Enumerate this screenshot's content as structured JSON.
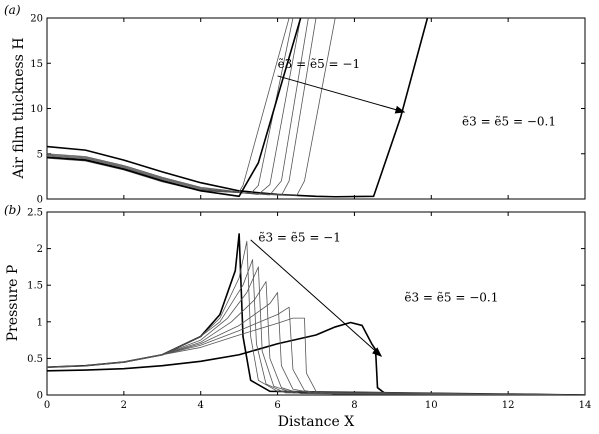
{
  "chart_data": [
    {
      "type": "line",
      "panel_label": "(a)",
      "xlabel": "",
      "ylabel": "Air film thickness H",
      "xlim": [
        0,
        14
      ],
      "ylim": [
        0,
        20
      ],
      "xticks": [
        "0",
        "2",
        "4",
        "6",
        "8",
        "10",
        "12",
        "14"
      ],
      "yticks": [
        "0",
        "5",
        "10",
        "15",
        "20"
      ],
      "x_tick_labels_shown": false,
      "annotations": [
        {
          "text": "ẽ3 = ẽ5 = −1",
          "x": 6.0,
          "y": 14.5
        },
        {
          "text": "ẽ3 = ẽ5 = −0.1",
          "x": 10.8,
          "y": 8.1
        }
      ],
      "arrow": {
        "from": [
          6.0,
          13.6
        ],
        "to": [
          9.3,
          9.6
        ]
      },
      "series": [
        {
          "values": [
            [
              0,
              5.8
            ],
            [
              1,
              5.4
            ],
            [
              2,
              4.3
            ],
            [
              3,
              3.0
            ],
            [
              4,
              1.8
            ],
            [
              5,
              0.9
            ],
            [
              6,
              0.5
            ],
            [
              7,
              0.3
            ],
            [
              7.5,
              0.25
            ],
            [
              8.5,
              0.3
            ],
            [
              9.2,
              9.0
            ],
            [
              9.9,
              20
            ]
          ],
          "bold": true
        },
        {
          "values": [
            [
              0,
              5.0
            ],
            [
              1,
              4.7
            ],
            [
              2,
              3.7
            ],
            [
              3,
              2.4
            ],
            [
              4,
              1.3
            ],
            [
              5,
              0.8
            ],
            [
              5.1,
              1.5
            ],
            [
              6.3,
              20
            ]
          ],
          "bold": false
        },
        {
          "values": [
            [
              0,
              4.9
            ],
            [
              1,
              4.6
            ],
            [
              2,
              3.6
            ],
            [
              3,
              2.3
            ],
            [
              4,
              1.2
            ],
            [
              5.3,
              0.6
            ],
            [
              5.5,
              1.5
            ],
            [
              6.4,
              20
            ]
          ],
          "bold": false
        },
        {
          "values": [
            [
              0,
              4.8
            ],
            [
              1,
              4.5
            ],
            [
              2,
              3.5
            ],
            [
              3,
              2.2
            ],
            [
              4,
              1.1
            ],
            [
              5.5,
              0.5
            ],
            [
              5.8,
              1.6
            ],
            [
              6.6,
              20
            ]
          ],
          "bold": false
        },
        {
          "values": [
            [
              0,
              4.7
            ],
            [
              1,
              4.4
            ],
            [
              2,
              3.4
            ],
            [
              3,
              2.1
            ],
            [
              4,
              1.0
            ],
            [
              5.8,
              0.45
            ],
            [
              6.1,
              2.0
            ],
            [
              6.8,
              20
            ]
          ],
          "bold": false
        },
        {
          "values": [
            [
              0,
              4.6
            ],
            [
              1,
              4.3
            ],
            [
              2,
              3.3
            ],
            [
              3,
              2.0
            ],
            [
              4,
              1.0
            ],
            [
              6.1,
              0.4
            ],
            [
              6.3,
              2.0
            ],
            [
              7.0,
              20
            ]
          ],
          "bold": false
        },
        {
          "values": [
            [
              0,
              4.5
            ],
            [
              1,
              4.2
            ],
            [
              2,
              3.2
            ],
            [
              3,
              1.9
            ],
            [
              4,
              0.9
            ],
            [
              6.5,
              0.4
            ],
            [
              6.7,
              2.0
            ],
            [
              7.5,
              20
            ]
          ],
          "bold": false
        },
        {
          "values": [
            [
              0,
              4.6
            ],
            [
              1,
              4.3
            ],
            [
              2,
              3.3
            ],
            [
              3,
              2.0
            ],
            [
              4,
              0.9
            ],
            [
              5,
              0.3
            ],
            [
              5.5,
              4.0
            ],
            [
              6.6,
              20
            ]
          ],
          "bold": true
        }
      ]
    },
    {
      "type": "line",
      "panel_label": "(b)",
      "xlabel": "Distance X",
      "ylabel": "Pressure P",
      "xlim": [
        0,
        14
      ],
      "ylim": [
        0,
        2.5
      ],
      "xticks": [
        "0",
        "2",
        "4",
        "6",
        "8",
        "10",
        "12",
        "14"
      ],
      "yticks": [
        "0",
        "0.5",
        "1",
        "1.5",
        "2",
        "2.5"
      ],
      "x_tick_labels_shown": true,
      "annotations": [
        {
          "text": "ẽ3 = ẽ5 = −1",
          "x": 5.5,
          "y": 2.1
        },
        {
          "text": "ẽ3 = ẽ5 = −0.1",
          "x": 9.3,
          "y": 1.28
        }
      ],
      "arrow": {
        "from": [
          5.3,
          2.12
        ],
        "to": [
          8.7,
          0.53
        ]
      },
      "series": [
        {
          "values": [
            [
              0,
              0.33
            ],
            [
              1,
              0.34
            ],
            [
              2,
              0.36
            ],
            [
              3,
              0.4
            ],
            [
              4,
              0.46
            ],
            [
              5,
              0.55
            ],
            [
              6,
              0.7
            ],
            [
              7,
              0.82
            ],
            [
              7.5,
              0.93
            ],
            [
              7.9,
              0.99
            ],
            [
              8.2,
              0.95
            ],
            [
              8.45,
              0.7
            ],
            [
              8.55,
              0.62
            ],
            [
              8.6,
              0.1
            ],
            [
              8.8,
              0.02
            ],
            [
              14,
              0.0
            ]
          ],
          "bold": true
        },
        {
          "values": [
            [
              0,
              0.38
            ],
            [
              1,
              0.4
            ],
            [
              2,
              0.45
            ],
            [
              3,
              0.55
            ],
            [
              4,
              0.8
            ],
            [
              4.5,
              1.1
            ],
            [
              4.9,
              1.7
            ],
            [
              5.0,
              2.2
            ],
            [
              5.1,
              0.8
            ],
            [
              5.3,
              0.2
            ],
            [
              5.8,
              0.05
            ],
            [
              14,
              0.0
            ]
          ],
          "bold": true
        },
        {
          "values": [
            [
              0,
              0.38
            ],
            [
              1,
              0.4
            ],
            [
              2,
              0.45
            ],
            [
              3,
              0.55
            ],
            [
              4,
              0.8
            ],
            [
              4.5,
              1.05
            ],
            [
              5.0,
              1.6
            ],
            [
              5.2,
              2.1
            ],
            [
              5.3,
              0.8
            ],
            [
              5.5,
              0.2
            ],
            [
              6.0,
              0.05
            ],
            [
              14,
              0.0
            ]
          ],
          "bold": false
        },
        {
          "values": [
            [
              0,
              0.38
            ],
            [
              1,
              0.4
            ],
            [
              2,
              0.45
            ],
            [
              3,
              0.55
            ],
            [
              4,
              0.8
            ],
            [
              4.5,
              1.0
            ],
            [
              5.1,
              1.5
            ],
            [
              5.35,
              1.85
            ],
            [
              5.45,
              0.7
            ],
            [
              5.7,
              0.15
            ],
            [
              6.2,
              0.03
            ],
            [
              14,
              0.0
            ]
          ],
          "bold": false
        },
        {
          "values": [
            [
              0,
              0.38
            ],
            [
              1,
              0.4
            ],
            [
              2,
              0.45
            ],
            [
              3,
              0.55
            ],
            [
              4,
              0.75
            ],
            [
              4.7,
              1.05
            ],
            [
              5.2,
              1.4
            ],
            [
              5.5,
              1.75
            ],
            [
              5.6,
              0.6
            ],
            [
              5.9,
              0.12
            ],
            [
              6.4,
              0.03
            ],
            [
              14,
              0.0
            ]
          ],
          "bold": false
        },
        {
          "values": [
            [
              0,
              0.38
            ],
            [
              1,
              0.4
            ],
            [
              2,
              0.45
            ],
            [
              3,
              0.55
            ],
            [
              4,
              0.72
            ],
            [
              4.8,
              1.0
            ],
            [
              5.4,
              1.3
            ],
            [
              5.7,
              1.55
            ],
            [
              5.8,
              0.5
            ],
            [
              6.1,
              0.1
            ],
            [
              6.6,
              0.02
            ],
            [
              14,
              0.0
            ]
          ],
          "bold": false
        },
        {
          "values": [
            [
              0,
              0.38
            ],
            [
              1,
              0.4
            ],
            [
              2,
              0.45
            ],
            [
              3,
              0.55
            ],
            [
              4,
              0.7
            ],
            [
              5,
              0.95
            ],
            [
              5.8,
              1.25
            ],
            [
              6.0,
              1.4
            ],
            [
              6.1,
              0.4
            ],
            [
              6.4,
              0.08
            ],
            [
              7,
              0.02
            ],
            [
              14,
              0.0
            ]
          ],
          "bold": false
        },
        {
          "values": [
            [
              0,
              0.38
            ],
            [
              1,
              0.4
            ],
            [
              2,
              0.45
            ],
            [
              3,
              0.55
            ],
            [
              4,
              0.68
            ],
            [
              5,
              0.88
            ],
            [
              6,
              1.1
            ],
            [
              6.3,
              1.2
            ],
            [
              6.4,
              0.35
            ],
            [
              6.7,
              0.06
            ],
            [
              7.2,
              0.02
            ],
            [
              14,
              0.0
            ]
          ],
          "bold": false
        },
        {
          "values": [
            [
              0,
              0.38
            ],
            [
              1,
              0.4
            ],
            [
              2,
              0.45
            ],
            [
              3,
              0.55
            ],
            [
              4,
              0.65
            ],
            [
              5,
              0.82
            ],
            [
              6,
              0.98
            ],
            [
              6.4,
              1.05
            ],
            [
              6.7,
              1.05
            ],
            [
              6.75,
              0.3
            ],
            [
              7.0,
              0.05
            ],
            [
              7.5,
              0.01
            ],
            [
              14,
              0.0
            ]
          ],
          "bold": false
        }
      ]
    }
  ]
}
